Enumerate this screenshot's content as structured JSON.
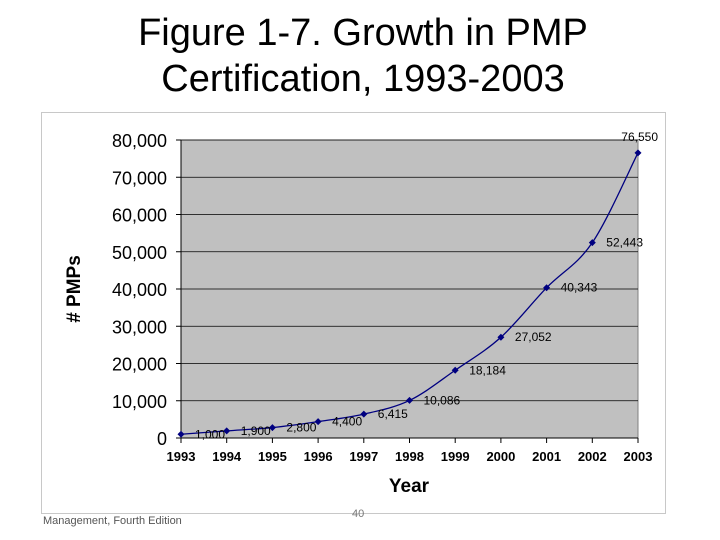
{
  "slide": {
    "title_line1": "Figure 1-7. Growth in PMP",
    "title_line2": "Certification, 1993-2003",
    "footer_text": "Management, Fourth Edition",
    "page_number": "40"
  },
  "chart_data": {
    "type": "line",
    "title": "",
    "xlabel": "Year",
    "ylabel": "# PMPs",
    "categories": [
      "1993",
      "1994",
      "1995",
      "1996",
      "1997",
      "1998",
      "1999",
      "2000",
      "2001",
      "2002",
      "2003"
    ],
    "series": [
      {
        "values": [
          1000,
          1900,
          2800,
          4400,
          6415,
          10086,
          18184,
          27052,
          40343,
          52443,
          76550
        ],
        "data_labels": [
          "1,000",
          "1,900",
          "2,800",
          "4,400",
          "6,415",
          "10,086",
          "18,184",
          "27,052",
          "40,343",
          "52,443",
          "76,550"
        ],
        "color": "#000080"
      }
    ],
    "ylim": [
      0,
      80000
    ],
    "yticks": [
      0,
      10000,
      20000,
      30000,
      40000,
      50000,
      60000,
      70000,
      80000
    ],
    "ytick_labels": [
      "0",
      "10,000",
      "20,000",
      "30,000",
      "40,000",
      "50,000",
      "60,000",
      "70,000",
      "80,000"
    ],
    "grid": true,
    "plot_background": "#c0c0c0",
    "legend": "none"
  }
}
